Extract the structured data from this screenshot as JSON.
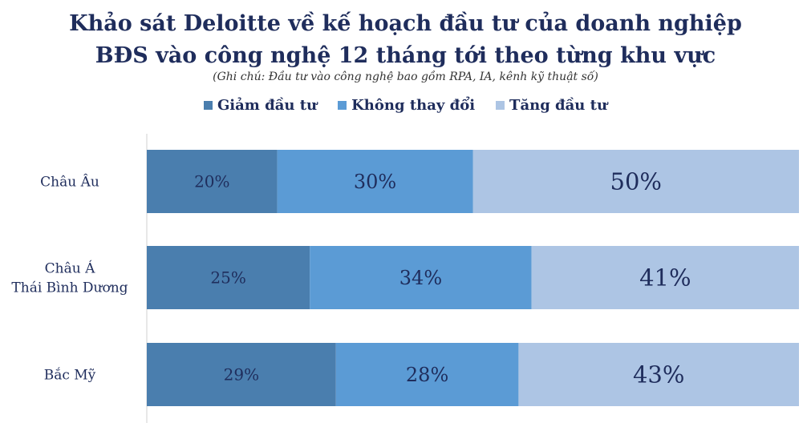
{
  "chart_data": {
    "type": "bar",
    "orientation": "horizontal",
    "stacked": true,
    "title_line1": "Khảo sát Deloitte về kế hoạch đầu tư của doanh nghiệp",
    "title_line2": "BĐS vào công nghệ 12 tháng tới theo từng khu vực",
    "subtitle": "(Ghi chú: Đầu tư vào công nghệ bao gồm RPA, IA, kênh kỹ thuật số)",
    "categories": [
      "Châu Âu",
      "Châu Á\nThái Bình Dương",
      "Bắc Mỹ"
    ],
    "series": [
      {
        "name": "Giảm đầu tư",
        "values": [
          20,
          25,
          29
        ],
        "labels": [
          "20%",
          "25%",
          "29%"
        ],
        "color": "#4a7eae"
      },
      {
        "name": "Không thay đổi",
        "values": [
          30,
          34,
          28
        ],
        "labels": [
          "30%",
          "34%",
          "28%"
        ],
        "color": "#5b9bd5"
      },
      {
        "name": "Tăng đầu tư",
        "values": [
          50,
          41,
          43
        ],
        "labels": [
          "50%",
          "41%",
          "43%"
        ],
        "color": "#adc5e4"
      }
    ],
    "xlim": [
      0,
      100
    ],
    "legend_position": "top"
  }
}
